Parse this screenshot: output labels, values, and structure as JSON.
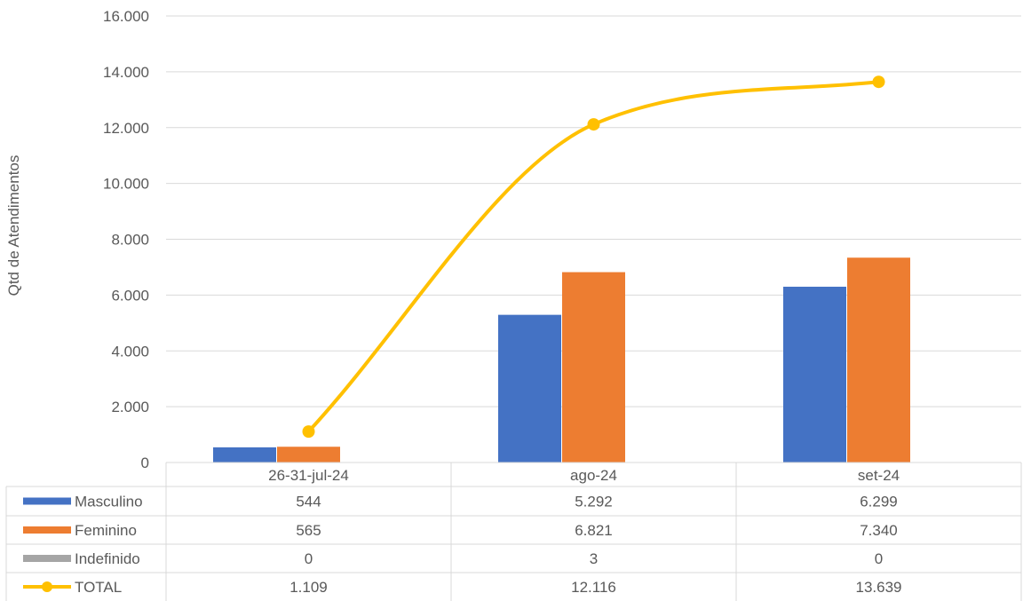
{
  "chart_data": {
    "type": "bar",
    "ylabel": "Qtd de Atendimentos",
    "ylim": [
      0,
      16000
    ],
    "y_ticks": [
      "0",
      "2.000",
      "4.000",
      "6.000",
      "8.000",
      "10.000",
      "12.000",
      "14.000",
      "16.000"
    ],
    "grid": true,
    "legend": "data-table",
    "categories": [
      "26-31-jul-24",
      "ago-24",
      "set-24"
    ],
    "series": [
      {
        "name": "Masculino",
        "type": "bar",
        "color": "#4472C4",
        "values": [
          544,
          5292,
          6299
        ],
        "labels": [
          "544",
          "5.292",
          "6.299"
        ]
      },
      {
        "name": "Feminino",
        "type": "bar",
        "color": "#ED7D31",
        "values": [
          565,
          6821,
          7340
        ],
        "labels": [
          "565",
          "6.821",
          "7.340"
        ]
      },
      {
        "name": "Indefinido",
        "type": "bar",
        "color": "#A5A5A5",
        "values": [
          0,
          3,
          0
        ],
        "labels": [
          "0",
          "3",
          "0"
        ]
      },
      {
        "name": "TOTAL",
        "type": "line",
        "smooth": true,
        "color": "#FFC000",
        "values": [
          1109,
          12116,
          13639
        ],
        "labels": [
          "1.109",
          "12.116",
          "13.639"
        ]
      }
    ]
  }
}
